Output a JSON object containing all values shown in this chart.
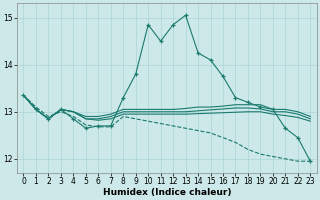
{
  "xlabel": "Humidex (Indice chaleur)",
  "xlim": [
    -0.5,
    23.5
  ],
  "ylim": [
    11.7,
    15.3
  ],
  "yticks": [
    12,
    13,
    14,
    15
  ],
  "xticks": [
    0,
    1,
    2,
    3,
    4,
    5,
    6,
    7,
    8,
    9,
    10,
    11,
    12,
    13,
    14,
    15,
    16,
    17,
    18,
    19,
    20,
    21,
    22,
    23
  ],
  "background_color": "#cce8e8",
  "grid_color": "#aad4d4",
  "line_color": "#1a7a6e",
  "spiky_line": [
    13.35,
    13.05,
    12.85,
    13.05,
    12.85,
    12.65,
    12.7,
    12.7,
    13.3,
    13.8,
    14.85,
    14.5,
    14.85,
    15.05,
    14.25,
    14.1,
    13.75,
    13.3,
    13.2,
    13.1,
    13.05,
    12.65,
    12.45,
    11.95
  ],
  "flat_line1": [
    13.35,
    13.05,
    12.85,
    13.05,
    13.0,
    12.9,
    12.9,
    12.95,
    13.05,
    13.05,
    13.05,
    13.05,
    13.05,
    13.07,
    13.1,
    13.1,
    13.12,
    13.15,
    13.15,
    13.15,
    13.05,
    13.05,
    13.0,
    12.9
  ],
  "flat_line2": [
    13.35,
    13.05,
    12.85,
    13.05,
    13.0,
    12.85,
    12.85,
    12.9,
    13.0,
    13.0,
    13.0,
    13.0,
    13.0,
    13.0,
    13.02,
    13.04,
    13.06,
    13.08,
    13.08,
    13.06,
    13.0,
    13.0,
    12.95,
    12.85
  ],
  "flat_line3": [
    13.35,
    13.05,
    12.85,
    13.05,
    13.0,
    12.85,
    12.82,
    12.85,
    12.95,
    12.95,
    12.95,
    12.95,
    12.95,
    12.95,
    12.96,
    12.97,
    12.98,
    12.99,
    13.0,
    13.0,
    12.95,
    12.92,
    12.88,
    12.8
  ],
  "dashed_line": [
    13.35,
    13.1,
    12.9,
    13.0,
    12.9,
    12.72,
    12.68,
    12.68,
    12.9,
    12.85,
    12.8,
    12.75,
    12.7,
    12.65,
    12.6,
    12.55,
    12.45,
    12.35,
    12.2,
    12.1,
    12.05,
    12.0,
    11.95,
    11.95
  ]
}
